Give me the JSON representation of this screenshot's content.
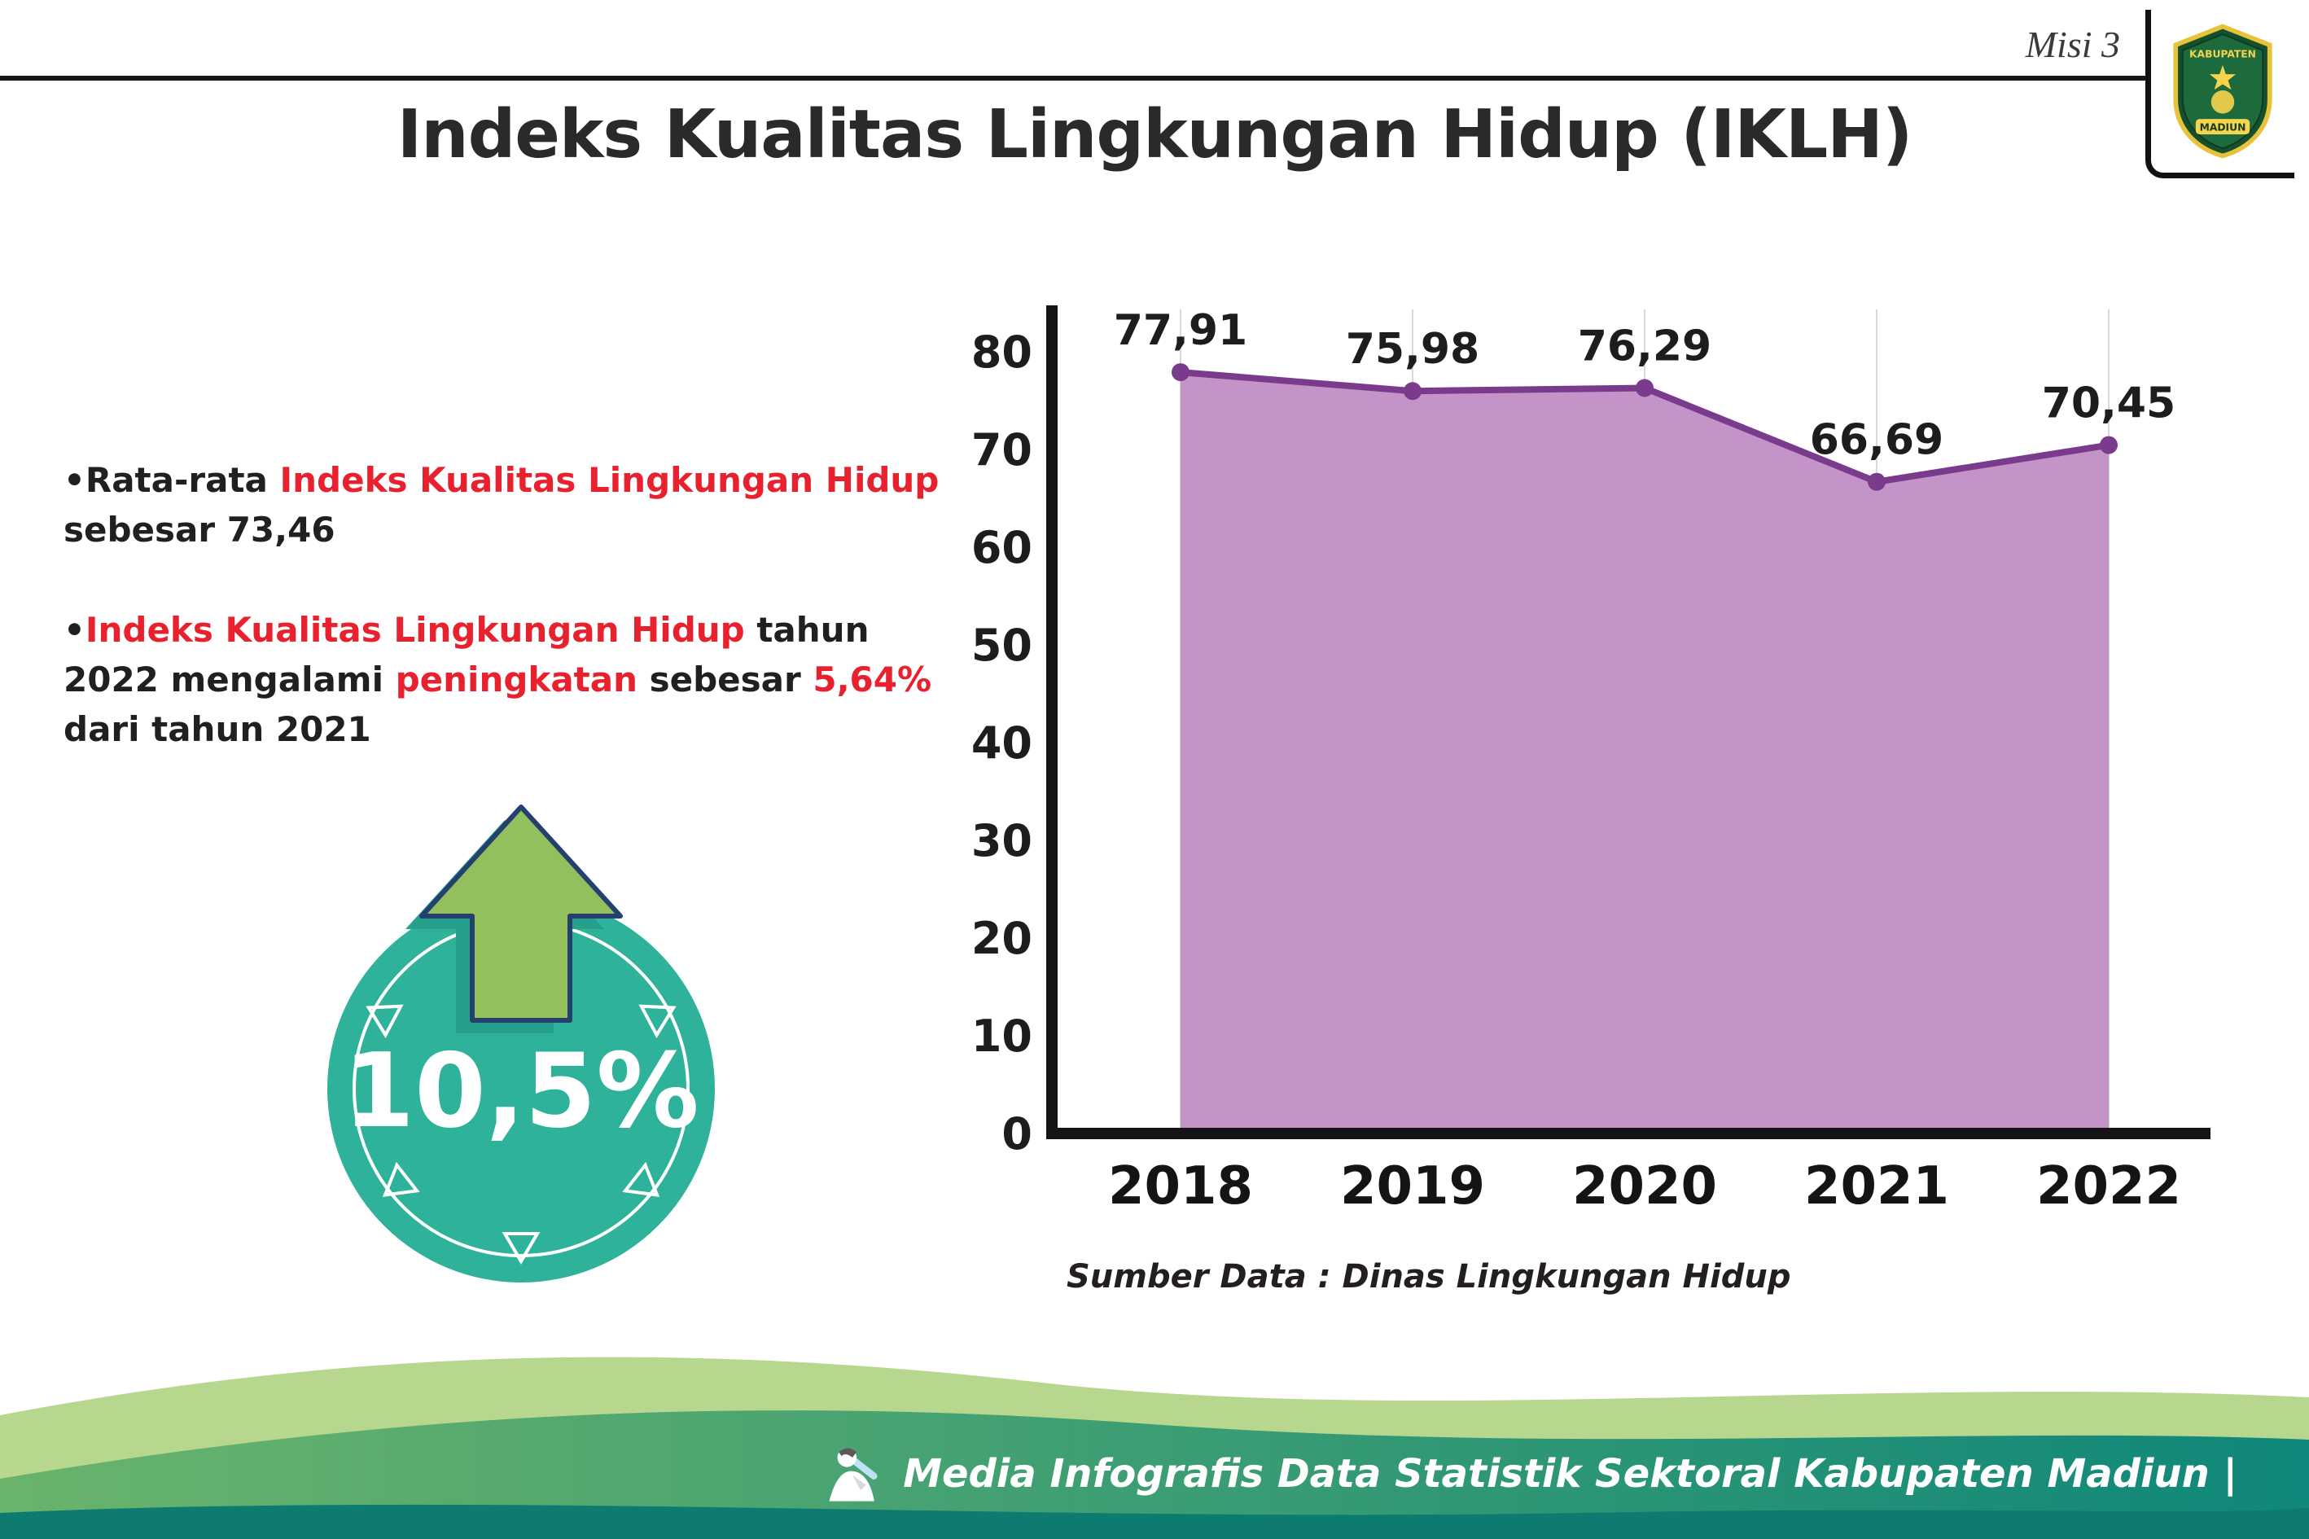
{
  "header": {
    "misi": "Misi 3"
  },
  "logo": {
    "name": "Kabupaten Madiun",
    "top_text": "KABUPATEN",
    "bottom_text": "MADIUN"
  },
  "title": "Indeks Kualitas Lingkungan Hidup (IKLH)",
  "bullet_marker": "•",
  "bullets": {
    "bullet1": {
      "pre": "Rata-rata ",
      "red": "Indeks Kualitas Lingkungan Hidup",
      "post": " sebesar 73,46"
    },
    "bullet2": {
      "red1": "Indeks Kualitas Lingkungan Hidup",
      "mid1": " tahun 2022 mengalami ",
      "red2": "peningkatan",
      "mid2": " sebesar ",
      "red3": "5,64%",
      "post": " dari tahun 2021"
    }
  },
  "badge": {
    "value": "10,5%"
  },
  "chart_data": {
    "type": "area",
    "title": "Indeks Kualitas Lingkungan Hidup (IKLH)",
    "categories": [
      "2018",
      "2019",
      "2020",
      "2021",
      "2022"
    ],
    "values": [
      77.91,
      75.98,
      76.29,
      66.69,
      70.45
    ],
    "value_labels": [
      "77,91",
      "75,98",
      "76,29",
      "66,69",
      "70,45"
    ],
    "xlabel": "",
    "ylabel": "",
    "ylim": [
      0,
      80
    ],
    "ytick_step": 10,
    "grid": "vertical-light",
    "legend_position": "none",
    "line_color": "#7a3b8c",
    "fill_color": "#c493c8",
    "grid_color": "#d8d8d8",
    "axis_color": "#141414",
    "source": "Sumber Data : Dinas Lingkungan Hidup"
  },
  "footer": {
    "text": "Media Infografis Data Statistik Sektoral Kabupaten Madiun |"
  },
  "colors": {
    "accent_red": "#e8212e",
    "badge_teal": "#2eb39a",
    "arrow_green": "#93c05c",
    "footer_green": "#6ab46c",
    "footer_teal": "#0f877a"
  }
}
